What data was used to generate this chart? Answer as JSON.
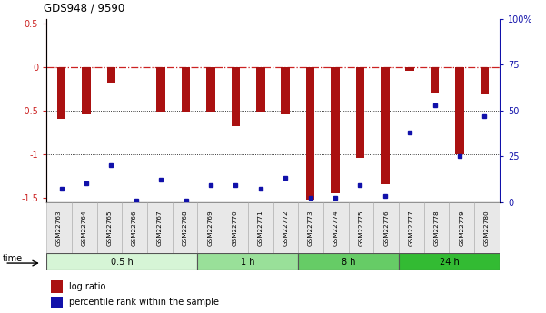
{
  "title": "GDS948 / 9590",
  "samples": [
    "GSM22763",
    "GSM22764",
    "GSM22765",
    "GSM22766",
    "GSM22767",
    "GSM22768",
    "GSM22769",
    "GSM22770",
    "GSM22771",
    "GSM22772",
    "GSM22773",
    "GSM22774",
    "GSM22775",
    "GSM22776",
    "GSM22777",
    "GSM22778",
    "GSM22779",
    "GSM22780"
  ],
  "log_ratio": [
    -0.6,
    -0.55,
    -0.18,
    0.0,
    -0.52,
    -0.52,
    -0.52,
    -0.68,
    -0.52,
    -0.55,
    -1.52,
    -1.45,
    -1.05,
    -1.35,
    -0.05,
    -0.3,
    -1.0,
    -0.32
  ],
  "percentile_rank": [
    7,
    10,
    20,
    1,
    12,
    1,
    9,
    9,
    7,
    13,
    2,
    2,
    9,
    3,
    38,
    53,
    25,
    47
  ],
  "time_groups": [
    {
      "label": "0.5 h",
      "start": 0,
      "end": 6,
      "color": "#d6f5d6"
    },
    {
      "label": "1 h",
      "start": 6,
      "end": 10,
      "color": "#99e099"
    },
    {
      "label": "8 h",
      "start": 10,
      "end": 14,
      "color": "#66cc66"
    },
    {
      "label": "24 h",
      "start": 14,
      "end": 18,
      "color": "#33bb33"
    }
  ],
  "ylim_left": [
    -1.55,
    0.55
  ],
  "ylim_right": [
    0,
    100
  ],
  "bar_color": "#aa1111",
  "dot_color": "#1111aa",
  "hline0_color": "#cc2222",
  "right_ticks": [
    0,
    25,
    50,
    75,
    100
  ],
  "right_tick_labels": [
    "0",
    "25",
    "50",
    "75",
    "100%"
  ],
  "left_ticks": [
    -1.5,
    -1.0,
    -0.5,
    0.0,
    0.5
  ],
  "left_tick_labels": [
    "-1.5",
    "-1",
    "-0.5",
    "0",
    "0.5"
  ]
}
